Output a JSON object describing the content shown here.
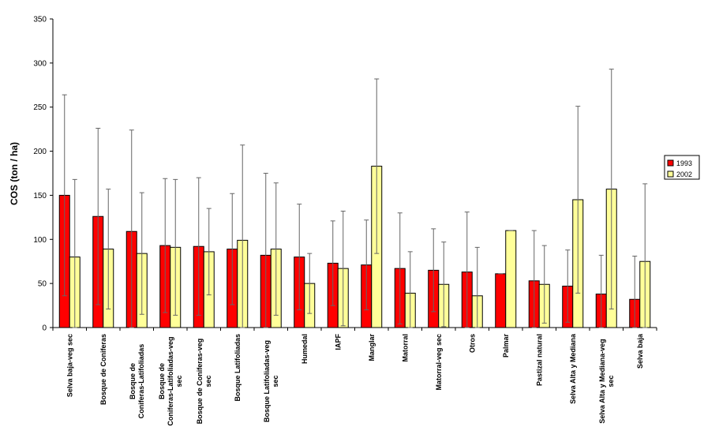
{
  "chart_data": {
    "type": "bar",
    "y_label": "COS (ton / ha)",
    "categories": [
      "Selva baja-veg sec",
      "Bosque de Coniferas",
      "Bosque de Coniferas-Latifoliadas",
      "Bosque de Coniferas-Latifoliadas-veg sec",
      "Bosque de Coniferas-veg sec",
      "Bosque Latifoliadas",
      "Bosque Latifoliadas-veg sec",
      "Humedal",
      "IAPF",
      "Manglar",
      "Matorral",
      "Matorral-veg sec",
      "Otros",
      "Palmar",
      "Pastizal natural",
      "Selva Alta y Mediana",
      "Selva Alta y Mediana-veg sec",
      "Selva baja"
    ],
    "series": [
      {
        "name": "1993",
        "color": "#ff0000",
        "values": [
          150,
          126,
          109,
          93,
          92,
          89,
          82,
          80,
          73,
          71,
          67,
          65,
          63,
          61,
          53,
          47,
          38,
          32
        ],
        "errors": [
          114,
          100,
          115,
          76,
          78,
          63,
          93,
          60,
          48,
          51,
          63,
          47,
          68,
          0,
          57,
          41,
          44,
          49
        ]
      },
      {
        "name": "2002",
        "color": "#ffff99",
        "values": [
          80,
          89,
          84,
          91,
          86,
          99,
          89,
          50,
          67,
          183,
          39,
          49,
          36,
          110,
          49,
          145,
          157,
          75
        ],
        "errors": [
          88,
          68,
          69,
          77,
          49,
          108,
          75,
          34,
          65,
          99,
          47,
          48,
          55,
          0,
          44,
          106,
          136,
          88
        ]
      }
    ],
    "ylim": [
      0,
      350
    ],
    "yticks": [
      0,
      50,
      100,
      150,
      200,
      250,
      300,
      350
    ],
    "grid": false,
    "legend": "right"
  }
}
